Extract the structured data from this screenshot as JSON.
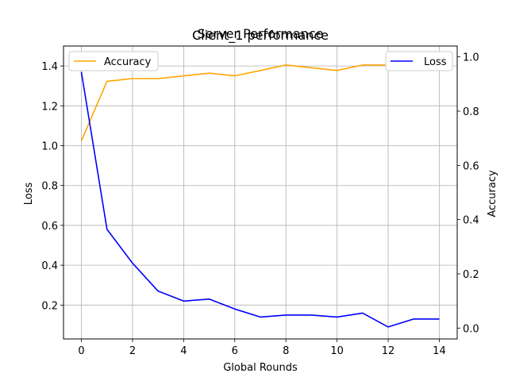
{
  "chart_data": {
    "type": "line",
    "titles": [
      "Client_1 performance",
      "Server Performance"
    ],
    "xlabel": "Global Rounds",
    "ylabel_left": "Loss",
    "ylabel_right": "Accuracy",
    "x": [
      0,
      1,
      2,
      3,
      4,
      5,
      6,
      7,
      8,
      9,
      10,
      11,
      12,
      13,
      14
    ],
    "xlim": [
      -0.7,
      14.7
    ],
    "ylim_left": [
      0.03,
      1.5
    ],
    "ylim_right": [
      -0.04,
      1.04
    ],
    "xticks": [
      "0",
      "2",
      "4",
      "6",
      "8",
      "10",
      "12",
      "14"
    ],
    "xtick_values": [
      0,
      2,
      4,
      6,
      8,
      10,
      12,
      14
    ],
    "yticks_left": [
      "0.2",
      "0.4",
      "0.6",
      "0.8",
      "1.0",
      "1.2",
      "1.4"
    ],
    "ytick_values_left": [
      0.2,
      0.4,
      0.6,
      0.8,
      1.0,
      1.2,
      1.4
    ],
    "yticks_right": [
      "0.0",
      "0.2",
      "0.4",
      "0.6",
      "0.8",
      "1.0"
    ],
    "ytick_values_right": [
      0.0,
      0.2,
      0.4,
      0.6,
      0.8,
      1.0
    ],
    "grid": true,
    "series": [
      {
        "name": "Accuracy",
        "axis": "right",
        "color": "#ffa500",
        "values": [
          0.69,
          0.91,
          0.92,
          0.92,
          0.93,
          0.94,
          0.93,
          0.95,
          0.97,
          0.96,
          0.95,
          0.97,
          0.97,
          0.96,
          0.97
        ],
        "legend_position": "upper-left"
      },
      {
        "name": "Loss",
        "axis": "left",
        "color": "#0000ff",
        "values": [
          1.37,
          0.58,
          0.41,
          0.27,
          0.22,
          0.23,
          0.18,
          0.14,
          0.15,
          0.15,
          0.14,
          0.16,
          0.09,
          0.13,
          0.13
        ],
        "legend_position": "upper-right"
      }
    ]
  }
}
